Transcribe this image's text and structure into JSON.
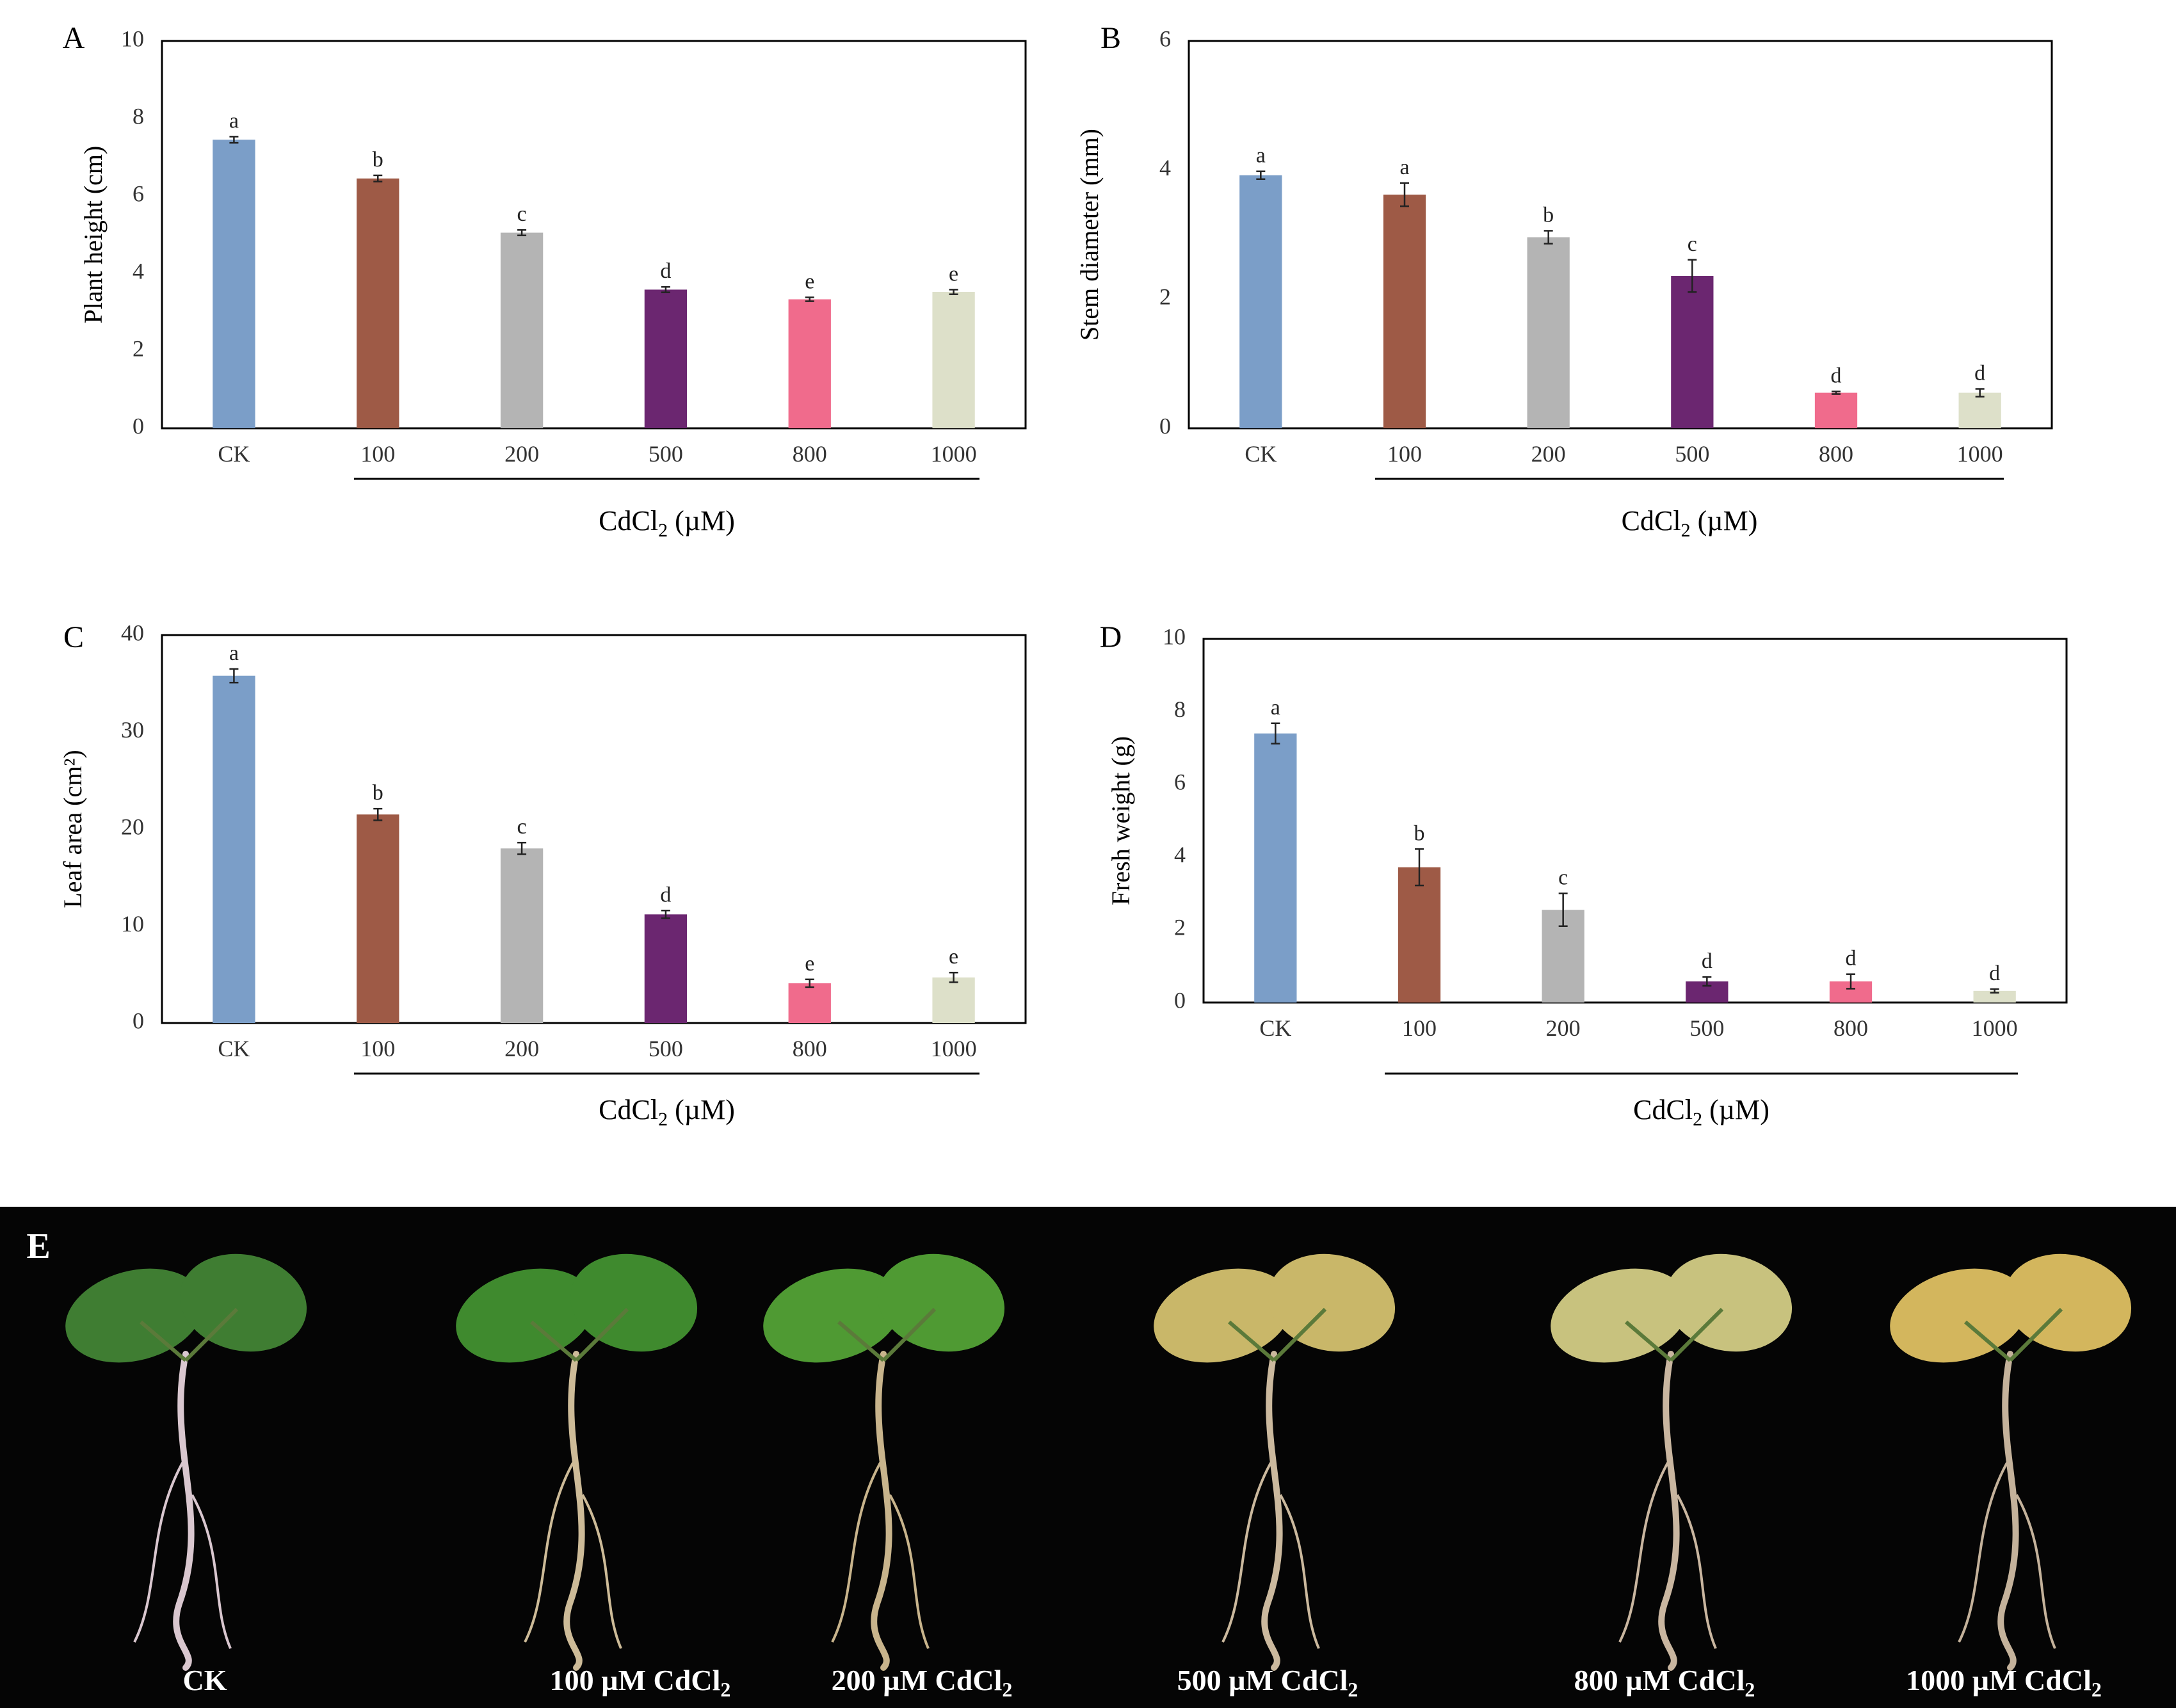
{
  "figure": {
    "categories": [
      "CK",
      "100",
      "200",
      "500",
      "800",
      "1000"
    ],
    "bar_colors": [
      "#7b9ec8",
      "#9e5a46",
      "#b4b4b4",
      "#6b2670",
      "#f06b8c",
      "#dde0c9"
    ]
  },
  "chart_data": [
    {
      "panel": "A",
      "type": "bar",
      "title": "",
      "xlabel": "CdCl₂ (µM)",
      "xlabel_main": "CdCl",
      "xlabel_sub": "2",
      "xlabel_unit": " (µM)",
      "ylabel": "Plant height (cm)",
      "ylim": [
        0,
        10
      ],
      "yticks": [
        "0",
        "2",
        "4",
        "6",
        "8",
        "10"
      ],
      "categories": [
        "CK",
        "100",
        "200",
        "500",
        "800",
        "1000"
      ],
      "values": [
        7.45,
        6.45,
        5.05,
        3.58,
        3.33,
        3.52
      ],
      "errors": [
        0.08,
        0.08,
        0.07,
        0.07,
        0.05,
        0.06
      ],
      "letters": [
        "a",
        "b",
        "c",
        "d",
        "e",
        "e"
      ]
    },
    {
      "panel": "B",
      "type": "bar",
      "title": "",
      "xlabel": "CdCl₂ (µM)",
      "xlabel_main": "CdCl",
      "xlabel_sub": "2",
      "xlabel_unit": " (µM)",
      "ylabel": "Stem diameter (mm)",
      "ylim": [
        0,
        6
      ],
      "yticks": [
        "0",
        "2",
        "4",
        "6"
      ],
      "categories": [
        "CK",
        "100",
        "200",
        "500",
        "800",
        "1000"
      ],
      "values": [
        3.92,
        3.62,
        2.96,
        2.36,
        0.55,
        0.55
      ],
      "errors": [
        0.06,
        0.18,
        0.1,
        0.25,
        0.02,
        0.06
      ],
      "letters": [
        "a",
        "a",
        "b",
        "c",
        "d",
        "d"
      ]
    },
    {
      "panel": "C",
      "type": "bar",
      "title": "",
      "xlabel": "CdCl₂ (µM)",
      "xlabel_main": "CdCl",
      "xlabel_sub": "2",
      "xlabel_unit": " (µM)",
      "ylabel": "Leaf area (cm²)",
      "ylim": [
        0,
        40
      ],
      "yticks": [
        "0",
        "10",
        "20",
        "30",
        "40"
      ],
      "categories": [
        "CK",
        "100",
        "200",
        "500",
        "800",
        "1000"
      ],
      "values": [
        35.8,
        21.5,
        18.0,
        11.2,
        4.1,
        4.7
      ],
      "errors": [
        0.7,
        0.6,
        0.6,
        0.4,
        0.4,
        0.5
      ],
      "letters": [
        "a",
        "b",
        "c",
        "d",
        "e",
        "e"
      ]
    },
    {
      "panel": "D",
      "type": "bar",
      "title": "",
      "xlabel": "CdCl₂ (µM)",
      "xlabel_main": "CdCl",
      "xlabel_sub": "2",
      "xlabel_unit": " (µM)",
      "ylabel": "Fresh weight (g)",
      "ylim": [
        0,
        10
      ],
      "yticks": [
        "0",
        "2",
        "4",
        "6",
        "8",
        "10"
      ],
      "categories": [
        "CK",
        "100",
        "200",
        "500",
        "800",
        "1000"
      ],
      "values": [
        7.4,
        3.72,
        2.55,
        0.58,
        0.58,
        0.32
      ],
      "errors": [
        0.28,
        0.5,
        0.45,
        0.12,
        0.2,
        0.05
      ],
      "letters": [
        "a",
        "b",
        "c",
        "d",
        "d",
        "d"
      ]
    }
  ],
  "photo_panel": {
    "label": "E",
    "plants": [
      {
        "text": "CK",
        "leaf": "#3f7d32",
        "root": "#d9c7cf"
      },
      {
        "text": "100 µM CdCl₂",
        "prefix": "100 µM CdCl",
        "sub": "2",
        "leaf": "#3f8a2e",
        "root": "#cdbb98"
      },
      {
        "text": "200 µM CdCl₂",
        "prefix": "200 µM CdCl",
        "sub": "2",
        "leaf": "#4f9a33",
        "root": "#c8b48c"
      },
      {
        "text": "500 µM CdCl₂",
        "prefix": "500 µM CdCl",
        "sub": "2",
        "leaf": "#c9b769",
        "root": "#cbb99e"
      },
      {
        "text": "800 µM CdCl₂",
        "prefix": "800 µM CdCl",
        "sub": "2",
        "leaf": "#c8c27e",
        "root": "#c9b6a0"
      },
      {
        "text": "1000 µM CdCl₂",
        "prefix": "1000 µM CdCl",
        "sub": "2",
        "leaf": "#d3b65d",
        "root": "#c4b29b"
      }
    ]
  }
}
